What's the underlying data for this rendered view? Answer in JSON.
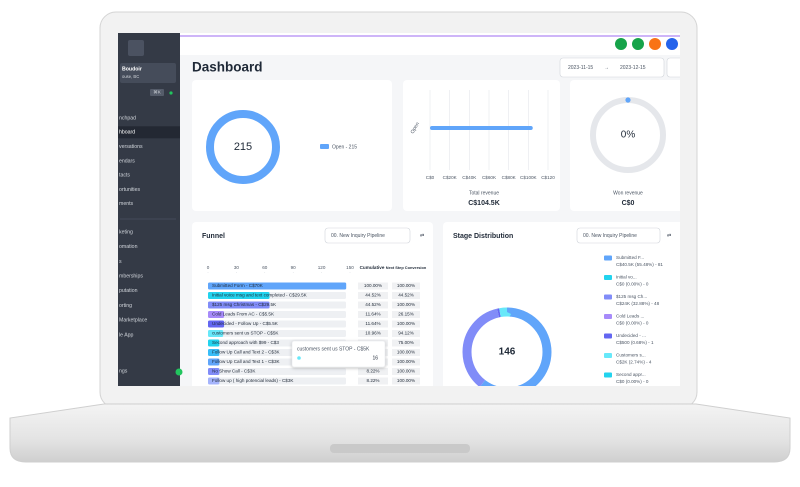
{
  "header": {
    "title": "Dashboard",
    "date_start": "2023-11-15",
    "date_end": "2023-12-15"
  },
  "sidebar": {
    "account_name": "Boudoir",
    "account_location": "ouse, BC",
    "search_shortcut": "⌘K",
    "nav_top": [
      "nchpad",
      "hboard",
      "versations",
      "endars",
      "tacts",
      "ortunities",
      "ments"
    ],
    "nav_bottom": [
      "keting",
      "omation",
      "s",
      "mberships",
      "putation",
      "orting",
      "Marketplace",
      "le App"
    ],
    "settings": "ngs"
  },
  "opportunities": {
    "value": 215,
    "legend": "Open - 215",
    "color": "#60a5fa"
  },
  "revenue": {
    "y_label": "Open",
    "xlim": [
      0,
      120
    ],
    "xticks": [
      {
        "value": 0,
        "label": "C$0"
      },
      {
        "value": 20,
        "label": "C$20K"
      },
      {
        "value": 40,
        "label": "C$40K"
      },
      {
        "value": 60,
        "label": "C$60K"
      },
      {
        "value": 80,
        "label": "C$80K"
      },
      {
        "value": 100,
        "label": "C$100K"
      },
      {
        "value": 120,
        "label": "C$120"
      }
    ],
    "values": [
      104.5
    ],
    "color": "#60a5fa",
    "total_label": "Total revenue",
    "total": "C$104.5K"
  },
  "won": {
    "percent": "0%",
    "label": "Won revenue",
    "value": "C$0"
  },
  "funnel": {
    "title": "Funnel",
    "pipeline": "00. New Inquiry Pipeline",
    "xlim": [
      0,
      150
    ],
    "xticks": [
      0,
      30,
      60,
      90,
      120,
      150
    ],
    "columns": [
      "Cumulative",
      "Next Step Conversion"
    ],
    "rows": [
      {
        "label": "Submitted Form - C$70K",
        "value": 146,
        "color": "#60a5fa",
        "cumulative": "100.00%",
        "next": "100.00%"
      },
      {
        "label": "Initial voice msg and text completed - C$29.5K",
        "value": 65,
        "color": "#22d3ee",
        "cumulative": "44.52%",
        "next": "44.52%"
      },
      {
        "label": "$125 msg Christmas - C$29.5K",
        "value": 65,
        "color": "#818cf8",
        "cumulative": "44.52%",
        "next": "100.00%"
      },
      {
        "label": "Cold Leads From AC - C$5.5K",
        "value": 17,
        "color": "#a78bfa",
        "cumulative": "11.64%",
        "next": "26.15%"
      },
      {
        "label": "Undecided - Follow Up - C$5.5K",
        "value": 17,
        "color": "#6366f1",
        "cumulative": "11.64%",
        "next": "100.00%"
      },
      {
        "label": "customers sent us STOP - C$5K",
        "value": 16,
        "color": "#67e8f9",
        "cumulative": "10.96%",
        "next": "94.12%"
      },
      {
        "label": "Second approach with $99 - C$3",
        "value": 12,
        "color": "#22d3ee",
        "cumulative": null,
        "next": "75.00%"
      },
      {
        "label": "Follow Up Call and Text 2 - C$3K",
        "value": 12,
        "color": "#38bdf8",
        "cumulative": null,
        "next": "100.00%"
      },
      {
        "label": "Follow Up Call and Text 1 - C$3K",
        "value": 12,
        "color": "#60a5fa",
        "cumulative": null,
        "next": "100.00%"
      },
      {
        "label": "No Show Call - C$3K",
        "value": 12,
        "color": "#818cf8",
        "cumulative": "8.22%",
        "next": "100.00%"
      },
      {
        "label": "Follow up ( high potencial leads) - C$3K",
        "value": 12,
        "color": "#a5b4fc",
        "cumulative": "8.22%",
        "next": "100.00%"
      }
    ],
    "tooltip": {
      "label": "customers sent us STOP - C$5K",
      "value": 16,
      "color": "#67e8f9"
    }
  },
  "stage": {
    "title": "Stage Distribution",
    "pipeline": "00. New Inquiry Pipeline",
    "total": 146,
    "items": [
      {
        "name": "Submitted F...",
        "detail": "C$40.5K (55.48%) - 81",
        "count": 81,
        "color": "#60a5fa"
      },
      {
        "name": "Initial vo...",
        "detail": "C$0 (0.00%) - 0",
        "count": 0,
        "color": "#22d3ee"
      },
      {
        "name": "$125 msg Ch...",
        "detail": "C$24K (32.88%) - 48",
        "count": 48,
        "color": "#818cf8"
      },
      {
        "name": "Cold Leads ...",
        "detail": "C$0 (0.00%) - 0",
        "count": 0,
        "color": "#a78bfa"
      },
      {
        "name": "Undecided - ...",
        "detail": "C$500 (0.68%) - 1",
        "count": 1,
        "color": "#6366f1"
      },
      {
        "name": "Customers s...",
        "detail": "C$2K (2.74%) - 4",
        "count": 4,
        "color": "#67e8f9"
      },
      {
        "name": "Second appr...",
        "detail": "C$0 (0.00%) - 0",
        "count": 0,
        "color": "#22d3ee"
      }
    ]
  }
}
